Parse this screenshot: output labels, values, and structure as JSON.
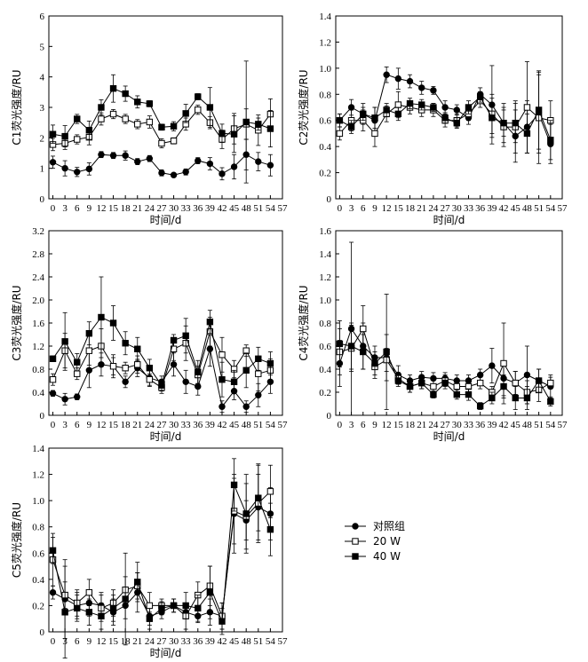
{
  "legend": {
    "entries": [
      {
        "name": "对照组",
        "marker": "circle"
      },
      {
        "name": "20 W",
        "marker": "square-open"
      },
      {
        "name": "40 W",
        "marker": "square"
      }
    ]
  },
  "chart_data": [
    {
      "id": "c1",
      "type": "line",
      "xlabel": "时间/d",
      "ylabel": "C1荧光强度/RU",
      "xticks": [
        0,
        3,
        6,
        9,
        12,
        15,
        18,
        21,
        24,
        27,
        30,
        33,
        36,
        39,
        42,
        45,
        48,
        51,
        54,
        57
      ],
      "xlim": [
        -1,
        57
      ],
      "ylim": [
        0,
        6
      ],
      "yticks": [
        0,
        1,
        2,
        3,
        4,
        5,
        6
      ],
      "ytick_labels": [
        "0",
        "1",
        "2",
        "3",
        "4",
        "5",
        "6"
      ],
      "x": [
        0,
        3,
        6,
        9,
        12,
        15,
        18,
        21,
        24,
        27,
        30,
        33,
        36,
        39,
        42,
        45,
        48,
        51,
        54
      ],
      "series": [
        {
          "name": "对照组",
          "marker": "circle",
          "values": [
            1.2,
            1.0,
            0.88,
            0.98,
            1.45,
            1.42,
            1.42,
            1.22,
            1.32,
            0.85,
            0.78,
            0.88,
            1.25,
            1.15,
            0.82,
            1.05,
            1.45,
            1.22,
            1.1
          ],
          "errors": [
            0.2,
            0.25,
            0.15,
            0.2,
            0.1,
            0.1,
            0.15,
            0.1,
            0.1,
            0.1,
            0.05,
            0.1,
            0.1,
            0.2,
            0.2,
            0.4,
            0.5,
            0.3,
            0.35
          ]
        },
        {
          "name": "20 W",
          "marker": "square-open",
          "values": [
            1.78,
            1.82,
            1.95,
            2.02,
            2.62,
            2.78,
            2.62,
            2.45,
            2.52,
            1.82,
            1.9,
            2.45,
            2.92,
            2.5,
            1.95,
            2.3,
            2.45,
            2.25,
            2.78
          ],
          "errors": [
            0.2,
            0.2,
            0.15,
            0.25,
            0.2,
            0.15,
            0.15,
            0.15,
            0.2,
            0.15,
            0.1,
            0.2,
            0.15,
            0.2,
            0.3,
            0.5,
            0.5,
            0.5,
            0.5
          ]
        },
        {
          "name": "40 W",
          "marker": "square",
          "values": [
            2.12,
            2.05,
            2.62,
            2.25,
            3.0,
            3.62,
            3.45,
            3.18,
            3.12,
            2.35,
            2.38,
            2.8,
            3.35,
            3.0,
            2.15,
            2.12,
            2.52,
            2.45,
            2.3
          ],
          "errors": [
            0.3,
            0.35,
            0.15,
            0.3,
            0.25,
            0.45,
            0.25,
            0.2,
            0.1,
            0.1,
            0.15,
            0.3,
            0.1,
            0.65,
            0.3,
            0.6,
            2.0,
            0.2,
            0.6
          ]
        }
      ]
    },
    {
      "id": "c2",
      "type": "line",
      "xlabel": "时间/d",
      "ylabel": "C2荧光强度/RU",
      "xticks": [
        0,
        3,
        6,
        9,
        12,
        15,
        18,
        21,
        24,
        27,
        30,
        33,
        36,
        39,
        42,
        45,
        48,
        51,
        54,
        57
      ],
      "xlim": [
        -1,
        57
      ],
      "ylim": [
        0,
        1.4
      ],
      "yticks": [
        0,
        0.2,
        0.4,
        0.6,
        0.8,
        1.0,
        1.2,
        1.4
      ],
      "ytick_labels": [
        "0",
        "0.2",
        "0.4",
        "0.6",
        "0.8",
        "1.0",
        "1.2",
        "1.4"
      ],
      "x": [
        0,
        3,
        6,
        9,
        12,
        15,
        18,
        21,
        24,
        27,
        30,
        33,
        36,
        39,
        42,
        45,
        48,
        51,
        54
      ],
      "series": [
        {
          "name": "对照组",
          "marker": "circle",
          "values": [
            0.6,
            0.7,
            0.65,
            0.6,
            0.95,
            0.92,
            0.9,
            0.85,
            0.83,
            0.7,
            0.68,
            0.62,
            0.8,
            0.72,
            0.58,
            0.48,
            0.55,
            0.65,
            0.42
          ],
          "errors": [
            0.05,
            0.06,
            0.08,
            0.1,
            0.06,
            0.08,
            0.05,
            0.05,
            0.03,
            0.05,
            0.04,
            0.05,
            0.05,
            0.3,
            0.15,
            0.2,
            0.2,
            0.3,
            0.15
          ]
        },
        {
          "name": "20 W",
          "marker": "square-open",
          "values": [
            0.5,
            0.6,
            0.6,
            0.5,
            0.65,
            0.72,
            0.7,
            0.68,
            0.68,
            0.6,
            0.6,
            0.65,
            0.75,
            0.65,
            0.55,
            0.55,
            0.7,
            0.62,
            0.6
          ],
          "errors": [
            0.05,
            0.08,
            0.08,
            0.1,
            0.06,
            0.1,
            0.05,
            0.05,
            0.05,
            0.05,
            0.05,
            0.05,
            0.05,
            0.15,
            0.15,
            0.2,
            0.35,
            0.35,
            0.15
          ]
        },
        {
          "name": "40 W",
          "marker": "square",
          "values": [
            0.6,
            0.55,
            0.65,
            0.62,
            0.68,
            0.65,
            0.73,
            0.72,
            0.7,
            0.62,
            0.58,
            0.7,
            0.78,
            0.62,
            0.58,
            0.58,
            0.5,
            0.68,
            0.45
          ],
          "errors": [
            0.05,
            0.05,
            0.05,
            0.08,
            0.05,
            0.05,
            0.04,
            0.04,
            0.03,
            0.04,
            0.04,
            0.05,
            0.04,
            0.15,
            0.1,
            0.15,
            0.15,
            0.3,
            0.15
          ]
        }
      ]
    },
    {
      "id": "c3",
      "type": "line",
      "xlabel": "时间/d",
      "ylabel": "C3荧光强度/RU",
      "xticks": [
        0,
        3,
        6,
        9,
        12,
        15,
        18,
        21,
        24,
        27,
        30,
        33,
        36,
        39,
        42,
        45,
        48,
        51,
        54,
        57
      ],
      "xlim": [
        -1,
        57
      ],
      "ylim": [
        0,
        3.2
      ],
      "yticks": [
        0,
        0.4,
        0.8,
        1.2,
        1.6,
        2.0,
        2.4,
        2.8,
        3.2
      ],
      "ytick_labels": [
        "0",
        "0.4",
        "0.8",
        "1.2",
        "1.6",
        "2.0",
        "2.4",
        "2.8",
        "3.2"
      ],
      "x": [
        0,
        3,
        6,
        9,
        12,
        15,
        18,
        21,
        24,
        27,
        30,
        33,
        36,
        39,
        42,
        45,
        48,
        51,
        54
      ],
      "series": [
        {
          "name": "对照组",
          "marker": "circle",
          "values": [
            0.38,
            0.28,
            0.32,
            0.78,
            0.88,
            0.85,
            0.58,
            0.82,
            0.65,
            0.58,
            0.88,
            0.58,
            0.5,
            1.15,
            0.15,
            0.42,
            0.15,
            0.35,
            0.58
          ],
          "errors": [
            0.05,
            0.1,
            0.05,
            0.3,
            0.2,
            0.15,
            0.1,
            0.15,
            0.15,
            0.1,
            0.2,
            0.2,
            0.15,
            0.3,
            0.1,
            0.15,
            0.1,
            0.2,
            0.2
          ]
        },
        {
          "name": "20 W",
          "marker": "square-open",
          "values": [
            0.62,
            1.12,
            0.72,
            1.12,
            1.2,
            0.85,
            0.82,
            0.88,
            0.62,
            0.48,
            1.15,
            1.25,
            0.7,
            1.45,
            1.05,
            0.8,
            1.12,
            0.72,
            0.78
          ],
          "errors": [
            0.1,
            0.3,
            0.1,
            0.25,
            0.3,
            0.2,
            0.1,
            0.15,
            0.1,
            0.1,
            0.2,
            0.3,
            0.15,
            0.25,
            0.3,
            0.15,
            0.1,
            0.3,
            0.2
          ]
        },
        {
          "name": "40 W",
          "marker": "square",
          "values": [
            0.98,
            1.28,
            0.92,
            1.42,
            1.7,
            1.6,
            1.25,
            1.15,
            0.82,
            0.52,
            1.3,
            1.38,
            0.75,
            1.62,
            0.62,
            0.58,
            0.78,
            0.98,
            0.9
          ],
          "errors": [
            0.05,
            0.5,
            0.15,
            0.2,
            0.7,
            0.3,
            0.2,
            0.2,
            0.15,
            0.1,
            0.1,
            0.3,
            0.2,
            0.2,
            0.3,
            0.2,
            0.3,
            0.2,
            0.2
          ]
        }
      ]
    },
    {
      "id": "c4",
      "type": "line",
      "xlabel": "时间/d",
      "ylabel": "C4荧光强度/RU",
      "xticks": [
        0,
        3,
        6,
        9,
        12,
        15,
        18,
        21,
        24,
        27,
        30,
        33,
        36,
        39,
        42,
        45,
        48,
        51,
        54,
        57
      ],
      "xlim": [
        -1,
        57
      ],
      "ylim": [
        0,
        1.6
      ],
      "yticks": [
        0,
        0.2,
        0.4,
        0.6,
        0.8,
        1.0,
        1.2,
        1.4,
        1.6
      ],
      "ytick_labels": [
        "0",
        "0.2",
        "0.4",
        "0.6",
        "0.8",
        "1.0",
        "1.2",
        "1.4",
        "1.6"
      ],
      "x": [
        0,
        3,
        6,
        9,
        12,
        15,
        18,
        21,
        24,
        27,
        30,
        33,
        36,
        39,
        42,
        45,
        48,
        51,
        54
      ],
      "series": [
        {
          "name": "对照组",
          "marker": "circle",
          "values": [
            0.45,
            0.75,
            0.6,
            0.5,
            0.5,
            0.35,
            0.3,
            0.33,
            0.32,
            0.32,
            0.3,
            0.3,
            0.35,
            0.43,
            0.32,
            0.28,
            0.35,
            0.3,
            0.25
          ],
          "errors": [
            0.2,
            0.75,
            0.2,
            0.1,
            0.2,
            0.08,
            0.05,
            0.05,
            0.05,
            0.05,
            0.05,
            0.05,
            0.05,
            0.15,
            0.15,
            0.1,
            0.25,
            0.1,
            0.1
          ]
        },
        {
          "name": "20 W",
          "marker": "square-open",
          "values": [
            0.55,
            0.58,
            0.75,
            0.42,
            0.48,
            0.32,
            0.25,
            0.28,
            0.25,
            0.3,
            0.25,
            0.25,
            0.28,
            0.2,
            0.45,
            0.28,
            0.2,
            0.22,
            0.28
          ],
          "errors": [
            0.2,
            0.2,
            0.2,
            0.1,
            0.1,
            0.05,
            0.05,
            0.05,
            0.05,
            0.05,
            0.05,
            0.05,
            0.05,
            0.05,
            0.35,
            0.1,
            0.1,
            0.1,
            0.05
          ]
        },
        {
          "name": "40 W",
          "marker": "square",
          "values": [
            0.62,
            0.6,
            0.55,
            0.45,
            0.55,
            0.3,
            0.25,
            0.28,
            0.18,
            0.28,
            0.18,
            0.18,
            0.08,
            0.15,
            0.25,
            0.15,
            0.15,
            0.3,
            0.12
          ],
          "errors": [
            0.2,
            0.2,
            0.15,
            0.1,
            0.5,
            0.05,
            0.05,
            0.05,
            0.03,
            0.05,
            0.04,
            0.05,
            0.03,
            0.05,
            0.1,
            0.1,
            0.1,
            0.1,
            0.04
          ]
        }
      ]
    },
    {
      "id": "c5",
      "type": "line",
      "xlabel": "时间/d",
      "ylabel": "C5荧光强度/RU",
      "xticks": [
        0,
        3,
        6,
        9,
        12,
        15,
        18,
        21,
        24,
        27,
        30,
        33,
        36,
        39,
        42,
        45,
        48,
        51,
        54,
        57
      ],
      "xlim": [
        -1,
        57
      ],
      "ylim": [
        0,
        1.4
      ],
      "yticks": [
        0,
        0.2,
        0.4,
        0.6,
        0.8,
        1.0,
        1.2,
        1.4
      ],
      "ytick_labels": [
        "0",
        "0.2",
        "0.4",
        "0.6",
        "0.8",
        "1.0",
        "1.2",
        "1.4"
      ],
      "x": [
        0,
        3,
        6,
        9,
        12,
        15,
        18,
        21,
        24,
        27,
        30,
        33,
        36,
        39,
        42,
        45,
        48,
        51,
        54
      ],
      "series": [
        {
          "name": "对照组",
          "marker": "circle",
          "values": [
            0.3,
            0.25,
            0.2,
            0.22,
            0.2,
            0.15,
            0.2,
            0.3,
            0.12,
            0.15,
            0.2,
            0.15,
            0.12,
            0.15,
            0.12,
            0.9,
            0.85,
            0.95,
            0.9
          ],
          "errors": [
            0.05,
            0.3,
            0.1,
            0.1,
            0.1,
            0.1,
            0.1,
            0.15,
            0.1,
            0.05,
            0.05,
            0.05,
            0.05,
            0.1,
            0.1,
            0.3,
            0.15,
            0.25,
            0.2
          ]
        },
        {
          "name": "20 W",
          "marker": "square-open",
          "values": [
            0.55,
            0.28,
            0.22,
            0.3,
            0.18,
            0.22,
            0.32,
            0.35,
            0.2,
            0.2,
            0.2,
            0.12,
            0.28,
            0.35,
            0.12,
            0.92,
            0.88,
            0.98,
            1.07
          ],
          "errors": [
            0.2,
            0.1,
            0.1,
            0.1,
            0.1,
            0.1,
            0.1,
            0.1,
            0.1,
            0.05,
            0.05,
            0.1,
            0.1,
            0.15,
            0.1,
            0.25,
            0.25,
            0.3,
            0.2
          ]
        },
        {
          "name": "40 W",
          "marker": "square",
          "values": [
            0.62,
            0.15,
            0.18,
            0.15,
            0.12,
            0.18,
            0.25,
            0.38,
            0.1,
            0.18,
            0.2,
            0.2,
            0.18,
            0.3,
            0.08,
            1.12,
            0.9,
            1.02,
            0.78
          ],
          "errors": [
            0.1,
            0.35,
            0.1,
            0.1,
            0.1,
            0.1,
            0.35,
            0.15,
            0.05,
            0.05,
            0.05,
            0.1,
            0.1,
            0.2,
            0.1,
            0.2,
            0.3,
            0.25,
            0.2
          ]
        }
      ]
    }
  ]
}
